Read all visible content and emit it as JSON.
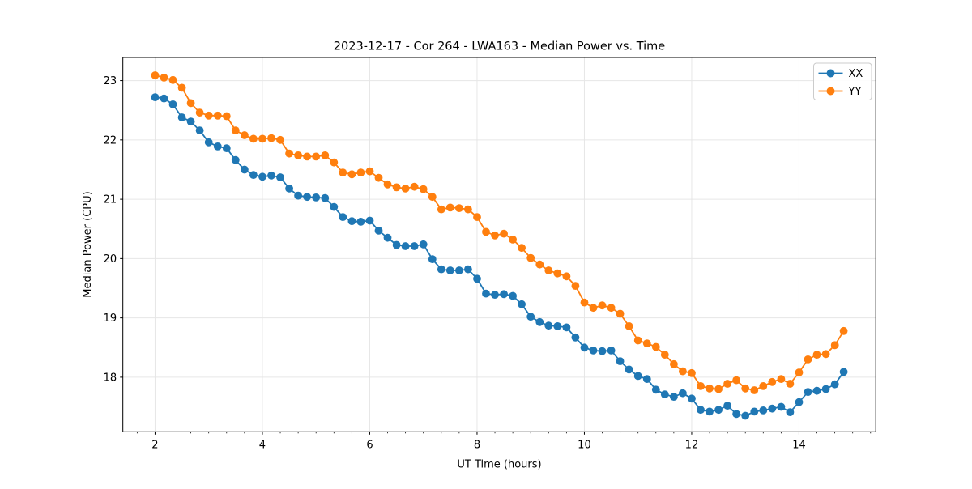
{
  "figure": {
    "background": "#ffffff"
  },
  "chart_data": {
    "type": "line",
    "title": "2023-12-17 - Cor 264 - LWA163 - Median Power vs. Time",
    "xlabel": "UT Time (hours)",
    "ylabel": "Median Power (CPU)",
    "xlim": [
      1.4,
      15.43
    ],
    "ylim": [
      17.08,
      23.39
    ],
    "xticks": [
      2,
      4,
      6,
      8,
      10,
      12,
      14
    ],
    "yticks": [
      18,
      19,
      20,
      21,
      22,
      23
    ],
    "x_minor_step": 0.33333,
    "grid": true,
    "grid_color": "#e6e6e6",
    "spine_color": "#000000",
    "marker": "circle",
    "marker_radius": 4.9,
    "line_width": 1.8,
    "legend": {
      "position": "upper right",
      "entries": [
        {
          "label": "XX",
          "color": "#1f77b4"
        },
        {
          "label": "YY",
          "color": "#ff7f0e"
        }
      ]
    },
    "x": [
      2.0,
      2.167,
      2.333,
      2.5,
      2.667,
      2.833,
      3.0,
      3.167,
      3.333,
      3.5,
      3.667,
      3.833,
      4.0,
      4.167,
      4.333,
      4.5,
      4.667,
      4.833,
      5.0,
      5.167,
      5.333,
      5.5,
      5.667,
      5.833,
      6.0,
      6.167,
      6.333,
      6.5,
      6.667,
      6.833,
      7.0,
      7.167,
      7.333,
      7.5,
      7.667,
      7.833,
      8.0,
      8.167,
      8.333,
      8.5,
      8.667,
      8.833,
      9.0,
      9.167,
      9.333,
      9.5,
      9.667,
      9.833,
      10.0,
      10.167,
      10.333,
      10.5,
      10.667,
      10.833,
      11.0,
      11.167,
      11.333,
      11.5,
      11.667,
      11.833,
      12.0,
      12.167,
      12.333,
      12.5,
      12.667,
      12.833,
      13.0,
      13.167,
      13.333,
      13.5,
      13.667,
      13.833,
      14.0,
      14.167,
      14.333,
      14.5,
      14.667,
      14.833
    ],
    "series": [
      {
        "name": "XX",
        "color": "#1f77b4",
        "values": [
          22.72,
          22.7,
          22.6,
          22.38,
          22.31,
          22.16,
          21.96,
          21.89,
          21.86,
          21.66,
          21.5,
          21.41,
          21.38,
          21.4,
          21.37,
          21.18,
          21.06,
          21.04,
          21.03,
          21.02,
          20.87,
          20.7,
          20.63,
          20.62,
          20.64,
          20.47,
          20.35,
          20.23,
          20.21,
          20.21,
          20.24,
          19.99,
          19.82,
          19.8,
          19.8,
          19.82,
          19.66,
          19.41,
          19.39,
          19.4,
          19.37,
          19.23,
          19.02,
          18.93,
          18.87,
          18.86,
          18.84,
          18.67,
          18.5,
          18.45,
          18.44,
          18.45,
          18.27,
          18.13,
          18.02,
          17.97,
          17.79,
          17.71,
          17.67,
          17.73,
          17.64,
          17.45,
          17.42,
          17.45,
          17.52,
          17.38,
          17.35,
          17.42,
          17.44,
          17.47,
          17.5,
          17.41,
          17.58,
          17.75,
          17.77,
          17.8,
          17.88,
          18.09
        ]
      },
      {
        "name": "YY",
        "color": "#ff7f0e",
        "values": [
          23.09,
          23.05,
          23.01,
          22.88,
          22.62,
          22.46,
          22.41,
          22.41,
          22.4,
          22.16,
          22.08,
          22.02,
          22.02,
          22.03,
          22.0,
          21.77,
          21.74,
          21.72,
          21.72,
          21.74,
          21.62,
          21.45,
          21.42,
          21.45,
          21.47,
          21.36,
          21.25,
          21.2,
          21.18,
          21.21,
          21.17,
          21.04,
          20.83,
          20.86,
          20.85,
          20.83,
          20.7,
          20.45,
          20.39,
          20.42,
          20.32,
          20.18,
          20.01,
          19.9,
          19.8,
          19.75,
          19.7,
          19.54,
          19.26,
          19.17,
          19.21,
          19.17,
          19.07,
          18.86,
          18.62,
          18.57,
          18.51,
          18.38,
          18.22,
          18.1,
          18.07,
          17.85,
          17.81,
          17.8,
          17.89,
          17.95,
          17.81,
          17.78,
          17.85,
          17.92,
          17.97,
          17.89,
          18.08,
          18.3,
          18.38,
          18.39,
          18.54,
          18.78
        ]
      }
    ]
  }
}
